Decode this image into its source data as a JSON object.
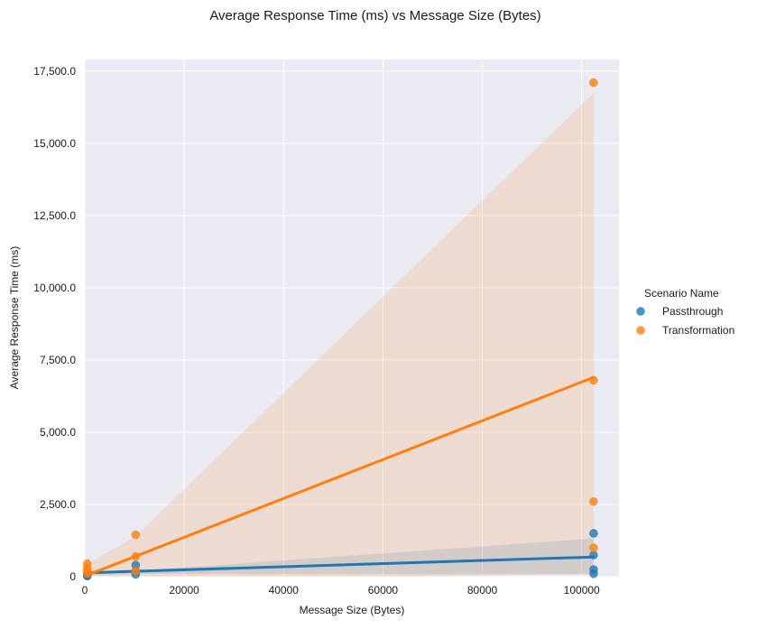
{
  "chart_data": {
    "type": "scatter",
    "title": "Average Response Time (ms) vs Message Size (Bytes)",
    "xlabel": "Message Size (Bytes)",
    "ylabel": "Average Response Time (ms)",
    "xlim": [
      0,
      107500
    ],
    "ylim": [
      0,
      17900
    ],
    "xticks": [
      0,
      20000,
      40000,
      60000,
      80000,
      100000
    ],
    "xtick_labels": [
      "0",
      "20000",
      "40000",
      "60000",
      "80000",
      "100000"
    ],
    "yticks": [
      0,
      2500,
      5000,
      7500,
      10000,
      12500,
      15000,
      17500
    ],
    "ytick_labels": [
      "0",
      "2,500.0",
      "5,000.0",
      "7,500.0",
      "10,000.0",
      "12,500.0",
      "15,000.0",
      "17,500.0"
    ],
    "grid": true,
    "legend_title": "Scenario Name",
    "legend_position": "right",
    "series": [
      {
        "name": "Passthrough",
        "color": "#1f77b4",
        "points": [
          [
            500,
            20
          ],
          [
            500,
            40
          ],
          [
            500,
            60
          ],
          [
            500,
            80
          ],
          [
            10240,
            80
          ],
          [
            10240,
            200
          ],
          [
            10240,
            400
          ],
          [
            102400,
            100
          ],
          [
            102400,
            250
          ],
          [
            102400,
            750
          ],
          [
            102400,
            1500
          ]
        ],
        "fit": [
          [
            0,
            130
          ],
          [
            102400,
            680
          ]
        ],
        "ci_upper": [
          [
            0,
            220
          ],
          [
            10240,
            200
          ],
          [
            102400,
            1320
          ]
        ],
        "ci_lower": [
          [
            0,
            40
          ],
          [
            10240,
            100
          ],
          [
            102400,
            80
          ]
        ]
      },
      {
        "name": "Transformation",
        "color": "#ff7f0e",
        "points": [
          [
            500,
            100
          ],
          [
            500,
            200
          ],
          [
            500,
            300
          ],
          [
            500,
            450
          ],
          [
            10240,
            200
          ],
          [
            10240,
            700
          ],
          [
            10240,
            1450
          ],
          [
            102400,
            1000
          ],
          [
            102400,
            2600
          ],
          [
            102400,
            6800
          ],
          [
            102400,
            17100
          ]
        ],
        "fit": [
          [
            0,
            20
          ],
          [
            102400,
            6900
          ]
        ],
        "ci_upper": [
          [
            0,
            380
          ],
          [
            10240,
            1400
          ],
          [
            102400,
            16750
          ]
        ],
        "ci_lower": [
          [
            0,
            -300
          ],
          [
            10240,
            -150
          ],
          [
            102400,
            100
          ]
        ]
      }
    ]
  }
}
